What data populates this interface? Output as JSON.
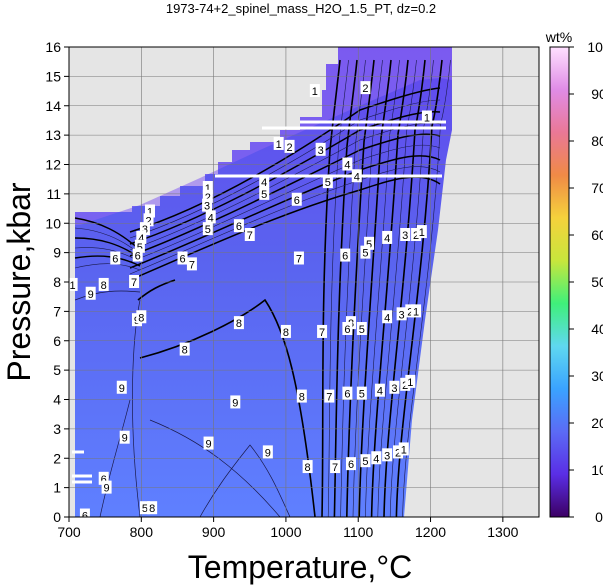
{
  "chart_data": {
    "type": "heatmap",
    "title": "1973-74+2_spinel_mass_H2O_1.5_PT, dz=0.2",
    "xlabel": "Temperature,°C",
    "ylabel": "Pressure,kbar",
    "xlim": [
      700,
      1350
    ],
    "ylim": [
      0,
      16
    ],
    "x_ticks": [
      "700",
      "800",
      "900",
      "1000",
      "1100",
      "1200",
      "1300"
    ],
    "y_ticks": [
      "0",
      "1",
      "2",
      "3",
      "4",
      "5",
      "6",
      "7",
      "8",
      "9",
      "10",
      "11",
      "12",
      "13",
      "14",
      "15",
      "16"
    ],
    "grid": true,
    "colorbar": {
      "label": "wt%",
      "range": [
        0,
        100
      ],
      "ticks": [
        "0",
        "10",
        "20",
        "30",
        "40",
        "50",
        "60",
        "70",
        "80",
        "90",
        "100"
      ],
      "colors": [
        "#3c0064",
        "#5a2ee6",
        "#5b6bf5",
        "#3aa3ff",
        "#5fd8f0",
        "#3ff07a",
        "#c8e63c",
        "#f5d23c",
        "#f08a46",
        "#ea7896",
        "#e08ce6",
        "#ffe0ff"
      ],
      "location": "right"
    },
    "contour_labels": [
      {
        "text": "1",
        "t": 1040,
        "p": 14.5
      },
      {
        "text": "2",
        "t": 1110,
        "p": 14.6
      },
      {
        "text": "1",
        "t": 1195,
        "p": 13.6
      },
      {
        "text": "1",
        "t": 990,
        "p": 12.7
      },
      {
        "text": "2",
        "t": 1005,
        "p": 12.6
      },
      {
        "text": "3",
        "t": 1048,
        "p": 12.5
      },
      {
        "text": "4",
        "t": 1085,
        "p": 12.0
      },
      {
        "text": "4",
        "t": 1098,
        "p": 11.6
      },
      {
        "text": "5",
        "t": 1058,
        "p": 11.4
      },
      {
        "text": "1",
        "t": 892,
        "p": 11.2
      },
      {
        "text": "2",
        "t": 892,
        "p": 10.9
      },
      {
        "text": "3",
        "t": 891,
        "p": 10.6
      },
      {
        "text": "4",
        "t": 896,
        "p": 10.2
      },
      {
        "text": "5",
        "t": 892,
        "p": 9.8
      },
      {
        "text": "4",
        "t": 970,
        "p": 11.4
      },
      {
        "text": "5",
        "t": 970,
        "p": 11.0
      },
      {
        "text": "6",
        "t": 1015,
        "p": 10.8
      },
      {
        "text": "6",
        "t": 935,
        "p": 9.9
      },
      {
        "text": "7",
        "t": 950,
        "p": 9.6
      },
      {
        "text": "1",
        "t": 812,
        "p": 10.4
      },
      {
        "text": "2",
        "t": 810,
        "p": 10.1
      },
      {
        "text": "3",
        "t": 805,
        "p": 9.8
      },
      {
        "text": "4",
        "t": 800,
        "p": 9.5
      },
      {
        "text": "5",
        "t": 798,
        "p": 9.2
      },
      {
        "text": "6",
        "t": 795,
        "p": 8.9
      },
      {
        "text": "6",
        "t": 764,
        "p": 8.8
      },
      {
        "text": "8",
        "t": 748,
        "p": 7.9
      },
      {
        "text": "9",
        "t": 730,
        "p": 7.6
      },
      {
        "text": "7",
        "t": 790,
        "p": 8.0
      },
      {
        "text": "1",
        "t": 705,
        "p": 7.9
      },
      {
        "text": "6",
        "t": 857,
        "p": 8.8
      },
      {
        "text": "7",
        "t": 870,
        "p": 8.6
      },
      {
        "text": "5",
        "t": 1115,
        "p": 9.3
      },
      {
        "text": "4",
        "t": 1140,
        "p": 9.5
      },
      {
        "text": "3",
        "t": 1165,
        "p": 9.6
      },
      {
        "text": "2",
        "t": 1180,
        "p": 9.6
      },
      {
        "text": "1",
        "t": 1188,
        "p": 9.7
      },
      {
        "text": "7",
        "t": 1018,
        "p": 8.8
      },
      {
        "text": "6",
        "t": 1082,
        "p": 8.9
      },
      {
        "text": "5",
        "t": 1110,
        "p": 9.0
      },
      {
        "text": "9",
        "t": 794,
        "p": 6.7
      },
      {
        "text": "8",
        "t": 800,
        "p": 6.8
      },
      {
        "text": "8",
        "t": 935,
        "p": 6.6
      },
      {
        "text": "8",
        "t": 1090,
        "p": 6.6
      },
      {
        "text": "8",
        "t": 1000,
        "p": 6.3
      },
      {
        "text": "7",
        "t": 1050,
        "p": 6.3
      },
      {
        "text": "6",
        "t": 1085,
        "p": 6.4
      },
      {
        "text": "5",
        "t": 1105,
        "p": 6.4
      },
      {
        "text": "4",
        "t": 1140,
        "p": 6.8
      },
      {
        "text": "3",
        "t": 1160,
        "p": 6.9
      },
      {
        "text": "2",
        "t": 1172,
        "p": 7.0
      },
      {
        "text": "1",
        "t": 1180,
        "p": 7.0
      },
      {
        "text": "8",
        "t": 860,
        "p": 5.7
      },
      {
        "text": "9",
        "t": 773,
        "p": 4.4
      },
      {
        "text": "9",
        "t": 930,
        "p": 3.9
      },
      {
        "text": "8",
        "t": 1022,
        "p": 4.1
      },
      {
        "text": "7",
        "t": 1060,
        "p": 4.1
      },
      {
        "text": "6",
        "t": 1085,
        "p": 4.2
      },
      {
        "text": "5",
        "t": 1105,
        "p": 4.2
      },
      {
        "text": "4",
        "t": 1130,
        "p": 4.3
      },
      {
        "text": "3",
        "t": 1150,
        "p": 4.4
      },
      {
        "text": "2",
        "t": 1165,
        "p": 4.5
      },
      {
        "text": "1",
        "t": 1172,
        "p": 4.6
      },
      {
        "text": "9",
        "t": 777,
        "p": 2.7
      },
      {
        "text": "9",
        "t": 893,
        "p": 2.5
      },
      {
        "text": "9",
        "t": 975,
        "p": 2.2
      },
      {
        "text": "8",
        "t": 1030,
        "p": 1.7
      },
      {
        "text": "7",
        "t": 1068,
        "p": 1.7
      },
      {
        "text": "6",
        "t": 1090,
        "p": 1.8
      },
      {
        "text": "5",
        "t": 1110,
        "p": 1.9
      },
      {
        "text": "4",
        "t": 1125,
        "p": 2.0
      },
      {
        "text": "3",
        "t": 1140,
        "p": 2.1
      },
      {
        "text": "2",
        "t": 1155,
        "p": 2.2
      },
      {
        "text": "1",
        "t": 1163,
        "p": 2.3
      },
      {
        "text": "6",
        "t": 748,
        "p": 1.3
      },
      {
        "text": "9",
        "t": 752,
        "p": 1.0
      },
      {
        "text": "5",
        "t": 805,
        "p": 0.3
      },
      {
        "text": "8",
        "t": 815,
        "p": 0.3
      },
      {
        "text": "6",
        "t": 722,
        "p": 0.05
      }
    ]
  }
}
